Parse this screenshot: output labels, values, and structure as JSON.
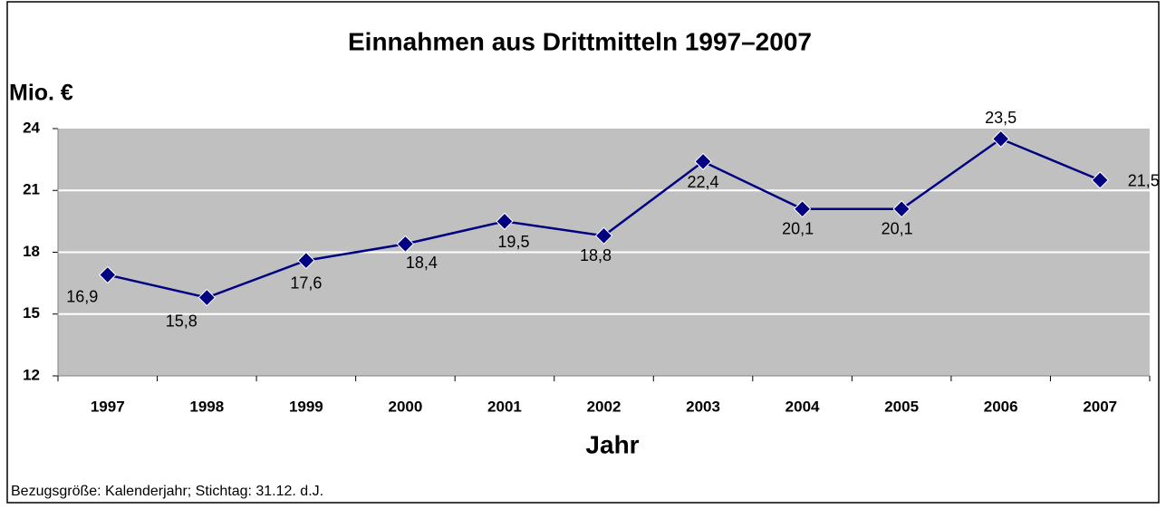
{
  "chart_data": {
    "type": "line",
    "title": "Einnahmen aus Drittmitteln 1997–2007",
    "y_label": "Mio. €",
    "x_label": "Jahr",
    "footnote": "Bezugsgröße: Kalenderjahr; Stichtag: 31.12. d.J.",
    "categories": [
      "1997",
      "1998",
      "1999",
      "2000",
      "2001",
      "2002",
      "2003",
      "2004",
      "2005",
      "2006",
      "2007"
    ],
    "series": [
      {
        "name": "Einnahmen",
        "color": "#000080",
        "values": [
          16.9,
          15.8,
          17.6,
          18.4,
          19.5,
          18.8,
          22.4,
          20.1,
          20.1,
          23.5,
          21.5
        ],
        "value_labels": [
          "16,9",
          "15,8",
          "17,6",
          "18,4",
          "19,5",
          "18,8",
          "22,4",
          "20,1",
          "20,1",
          "23,5",
          "21,5"
        ]
      }
    ],
    "ylim": [
      12,
      24
    ],
    "yticks": [
      12,
      15,
      18,
      21,
      24
    ],
    "grid": true,
    "plot_background": "#c0c0c0"
  }
}
